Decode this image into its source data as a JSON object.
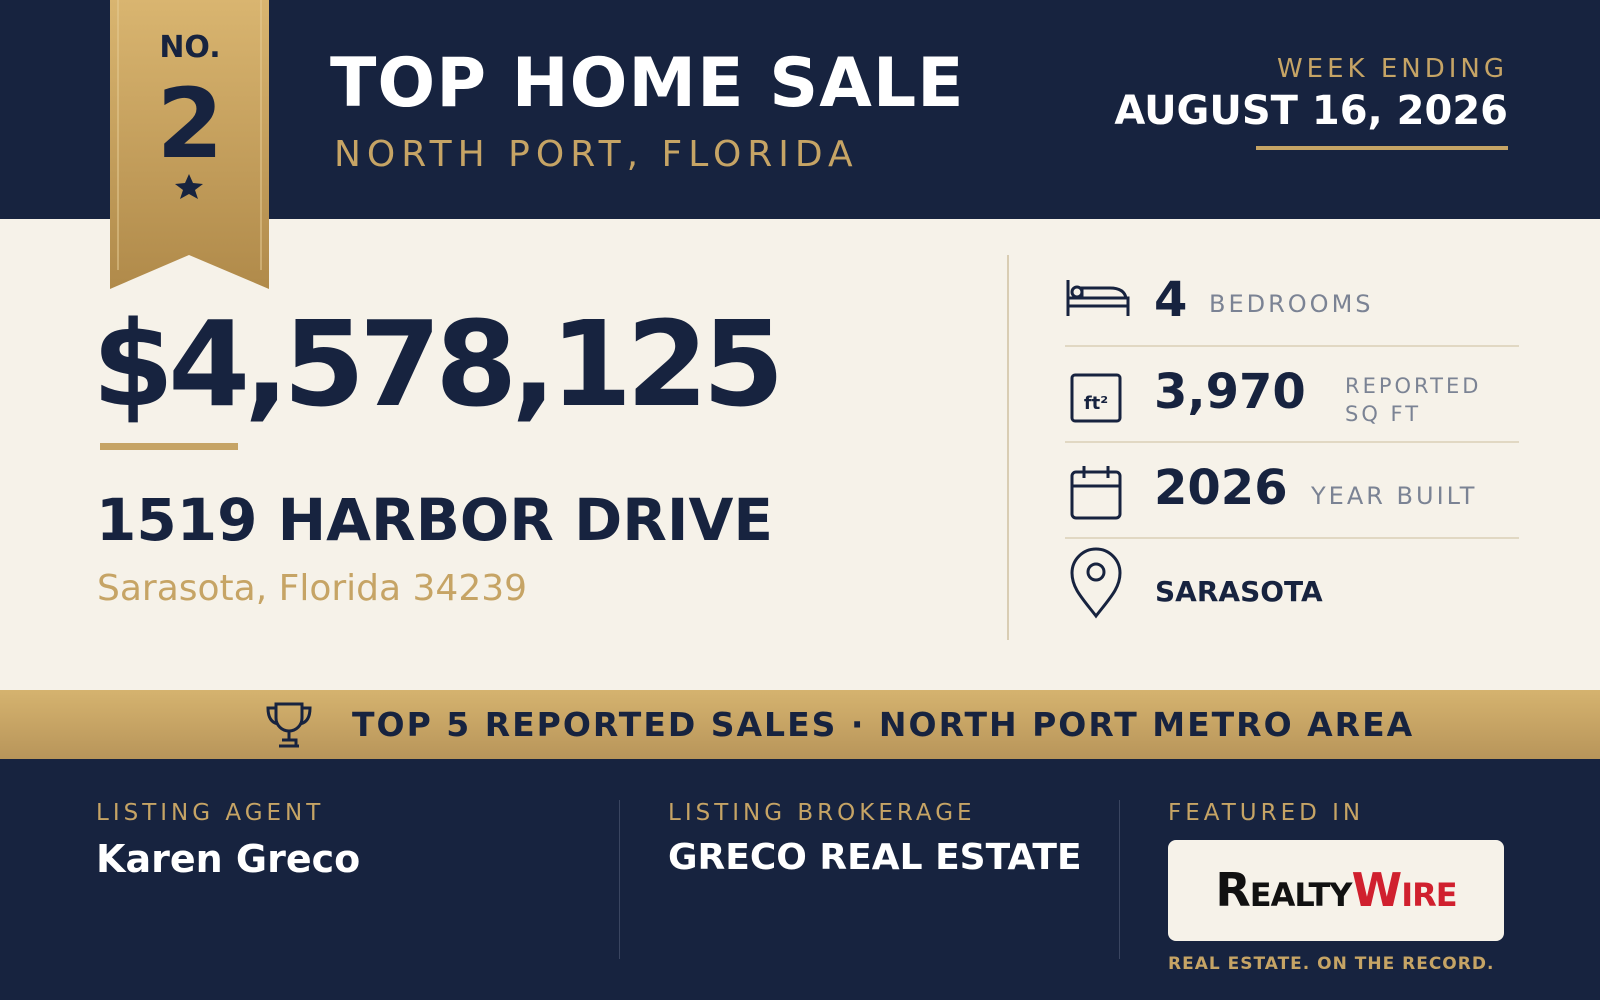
{
  "header": {
    "rank_prefix": "NO.",
    "rank": "2",
    "title": "TOP HOME SALE",
    "subtitle": "NORTH PORT, FLORIDA",
    "week_label": "WEEK ENDING",
    "week_date": "AUGUST 16, 2026"
  },
  "sale": {
    "price": "$4,578,125",
    "address": "1519 HARBOR DRIVE",
    "city": "Sarasota, Florida 34239"
  },
  "stats": [
    {
      "value": "4",
      "label": "BEDROOMS"
    },
    {
      "value": "3,970",
      "label": "REPORTED SQ FT"
    },
    {
      "value": "2026",
      "label": "YEAR BUILT"
    },
    {
      "value": "SARASOTA"
    }
  ],
  "sqft_icon": "ft²",
  "banner": "TOP 5 REPORTED SALES · NORTH PORT METRO AREA",
  "footer": {
    "agent_label": "LISTING AGENT",
    "agent": "Karen Greco",
    "brokerage_label": "LISTING BROKERAGE",
    "brokerage": "GRECO REAL ESTATE",
    "featured_label": "FEATURED IN",
    "logo_part1": "Realty",
    "logo_part2": "Wire",
    "tagline": "REAL ESTATE. ON THE RECORD."
  }
}
